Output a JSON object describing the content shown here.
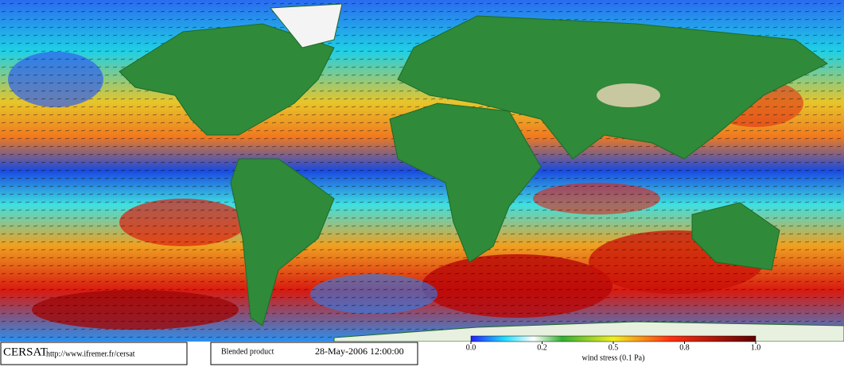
{
  "logo": "CERSAT",
  "url": "http://www.ifremer.fr/cersat",
  "product": "Blended product",
  "date": "28-May-2006 12:00:00",
  "colorbar": {
    "label": "wind stress (0.1 Pa)",
    "ticks": [
      {
        "value": 0,
        "label": "0.0"
      },
      {
        "value": 0.2,
        "label": "0.2"
      },
      {
        "value": 0.5,
        "label": "0.5"
      },
      {
        "value": 0.8,
        "label": "0.8"
      },
      {
        "value": 1,
        "label": "1.0"
      }
    ]
  }
}
